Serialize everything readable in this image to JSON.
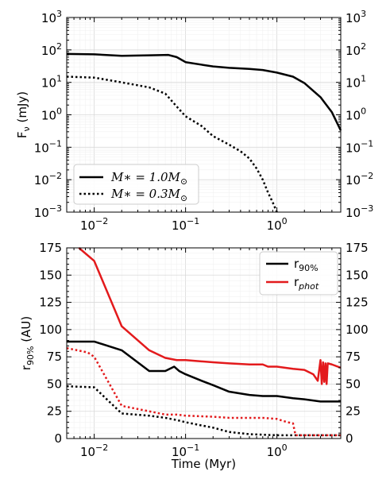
{
  "chart_data": [
    {
      "type": "line",
      "panel": "top",
      "ylabel": "F_ν (mJy)",
      "xlabel": "",
      "xscale": "log",
      "yscale": "log",
      "xlim": [
        0.005,
        5
      ],
      "ylim": [
        0.001,
        1000
      ],
      "x_ticks": [
        {
          "v": 0.01,
          "base": "10",
          "exp": "−2"
        },
        {
          "v": 0.1,
          "base": "10",
          "exp": "−1"
        },
        {
          "v": 1,
          "base": "10",
          "exp": "0"
        }
      ],
      "y_ticks": [
        {
          "v": 1000,
          "base": "10",
          "exp": "3"
        },
        {
          "v": 100,
          "base": "10",
          "exp": "2"
        },
        {
          "v": 10,
          "base": "10",
          "exp": "1"
        },
        {
          "v": 1,
          "base": "10",
          "exp": "0"
        },
        {
          "v": 0.1,
          "base": "10",
          "exp": "−1"
        },
        {
          "v": 0.01,
          "base": "10",
          "exp": "−2"
        },
        {
          "v": 0.001,
          "base": "10",
          "exp": "−3"
        }
      ],
      "grid": true,
      "legend_position": "lower-left",
      "series": [
        {
          "name": "M∗ = 1.0M⊙",
          "legend_lhs": "M∗ = 1.0M",
          "legend_sub": "⊙",
          "color": "#000000",
          "style": "solid",
          "x": [
            0.005,
            0.01,
            0.02,
            0.04,
            0.065,
            0.08,
            0.1,
            0.15,
            0.2,
            0.3,
            0.5,
            0.7,
            1.0,
            1.5,
            2.0,
            3.0,
            4.0,
            5.0
          ],
          "y": [
            75,
            73,
            66,
            68,
            70,
            60,
            42,
            35,
            31,
            28,
            26,
            24,
            20,
            15,
            9.5,
            3.5,
            1.2,
            0.33
          ]
        },
        {
          "name": "M∗ = 0.3M⊙",
          "legend_lhs": "M∗ = 0.3M",
          "legend_sub": "⊙",
          "color": "#000000",
          "style": "dotted",
          "x": [
            0.005,
            0.01,
            0.02,
            0.04,
            0.06,
            0.08,
            0.1,
            0.15,
            0.2,
            0.3,
            0.4,
            0.5,
            0.6,
            0.7,
            0.8,
            0.9,
            1.0
          ],
          "y": [
            15,
            14,
            10,
            7,
            4.5,
            1.8,
            0.9,
            0.45,
            0.22,
            0.12,
            0.075,
            0.045,
            0.022,
            0.01,
            0.004,
            0.002,
            0.001
          ]
        }
      ]
    },
    {
      "type": "line",
      "panel": "bottom",
      "ylabel": "r_90% (AU)",
      "xlabel": "Time (Myr)",
      "xscale": "log",
      "yscale": "linear",
      "xlim": [
        0.005,
        5
      ],
      "ylim": [
        0,
        175
      ],
      "x_ticks": [
        {
          "v": 0.01,
          "base": "10",
          "exp": "−2"
        },
        {
          "v": 0.1,
          "base": "10",
          "exp": "−1"
        },
        {
          "v": 1,
          "base": "10",
          "exp": "0"
        }
      ],
      "y_ticks": [
        0,
        25,
        50,
        75,
        100,
        125,
        150,
        175
      ],
      "grid": true,
      "legend_position": "top-right",
      "legend": [
        {
          "label": "r",
          "sub": "90%",
          "color": "#000000"
        },
        {
          "label": "r",
          "sub": "phot",
          "color": "#e31a1c"
        }
      ],
      "series": [
        {
          "name": "r90% M∗=1.0",
          "color": "#000000",
          "style": "solid",
          "x": [
            0.005,
            0.01,
            0.02,
            0.04,
            0.06,
            0.075,
            0.085,
            0.1,
            0.15,
            0.2,
            0.3,
            0.5,
            0.7,
            1.0,
            1.5,
            2.0,
            3.0,
            5.0
          ],
          "y": [
            89,
            89,
            81,
            62,
            62,
            66,
            62,
            59,
            53,
            49,
            43,
            40,
            39,
            39,
            37,
            36,
            34,
            34
          ]
        },
        {
          "name": "rphot M∗=1.0",
          "color": "#e31a1c",
          "style": "solid",
          "x": [
            0.0068,
            0.01,
            0.02,
            0.04,
            0.06,
            0.08,
            0.1,
            0.2,
            0.3,
            0.5,
            0.7,
            0.8,
            1.0,
            1.5,
            2.0,
            2.5,
            2.8,
            3.0,
            3.1,
            3.2,
            3.3,
            3.4,
            3.5,
            3.6,
            4.0,
            5.0
          ],
          "y": [
            175,
            163,
            103,
            81,
            74,
            72,
            72,
            70,
            69,
            68,
            68,
            66,
            66,
            64,
            63,
            59,
            53,
            72,
            50,
            70,
            52,
            69,
            50,
            69,
            68,
            65
          ]
        },
        {
          "name": "r90% M∗=0.3",
          "color": "#000000",
          "style": "dotted",
          "x": [
            0.005,
            0.01,
            0.02,
            0.04,
            0.06,
            0.08,
            0.1,
            0.15,
            0.2,
            0.3,
            0.5,
            0.7,
            1.0,
            2.0,
            5.0
          ],
          "y": [
            48,
            47,
            23,
            21,
            19,
            17,
            15,
            12,
            10,
            6,
            4,
            3.5,
            3,
            3,
            3
          ]
        },
        {
          "name": "rphot M∗=0.3",
          "color": "#e31a1c",
          "style": "dotted",
          "x": [
            0.005,
            0.0085,
            0.01,
            0.02,
            0.04,
            0.06,
            0.08,
            0.1,
            0.2,
            0.3,
            0.5,
            0.7,
            1.0,
            1.3,
            1.5,
            1.6,
            2.0,
            5.0
          ],
          "y": [
            83,
            79,
            75,
            30,
            25,
            22,
            22,
            21,
            20,
            19,
            19,
            19,
            18,
            15,
            14,
            3,
            3,
            3
          ]
        }
      ]
    }
  ]
}
